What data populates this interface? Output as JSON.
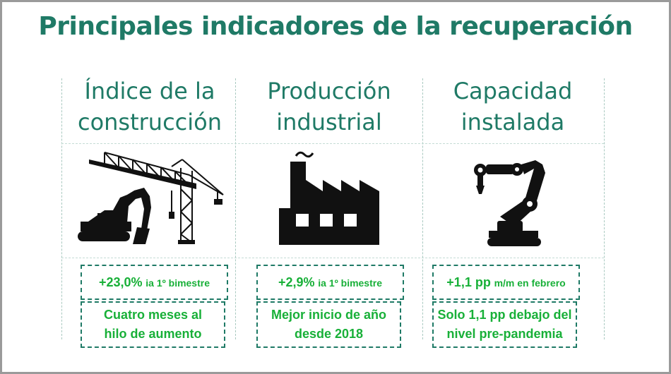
{
  "title": "Principales indicadores de la recuperación",
  "columns": [
    {
      "heading_line1": "Índice de la",
      "heading_line2": "construcción",
      "icon": "crane-excavator-icon",
      "stat_value": "+23,0%",
      "stat_suffix": "ia 1º bimestre",
      "note_line1": "Cuatro meses al",
      "note_line2": "hilo de aumento"
    },
    {
      "heading_line1": "Producción",
      "heading_line2": "industrial",
      "icon": "factory-icon",
      "stat_value": "+2,9%",
      "stat_suffix": "ia 1º bimestre",
      "note_line1": "Mejor inicio de año",
      "note_line2": "desde 2018"
    },
    {
      "heading_line1": "Capacidad",
      "heading_line2": "instalada",
      "icon": "robot-arm-icon",
      "stat_value": "+1,1 pp",
      "stat_suffix": "m/m en febrero",
      "note_line1": "Solo 1,1 pp debajo del",
      "note_line2": "nivel pre-pandemia"
    }
  ],
  "colors": {
    "title": "#1f7a66",
    "accent_green": "#18b038",
    "icon": "#111111"
  }
}
